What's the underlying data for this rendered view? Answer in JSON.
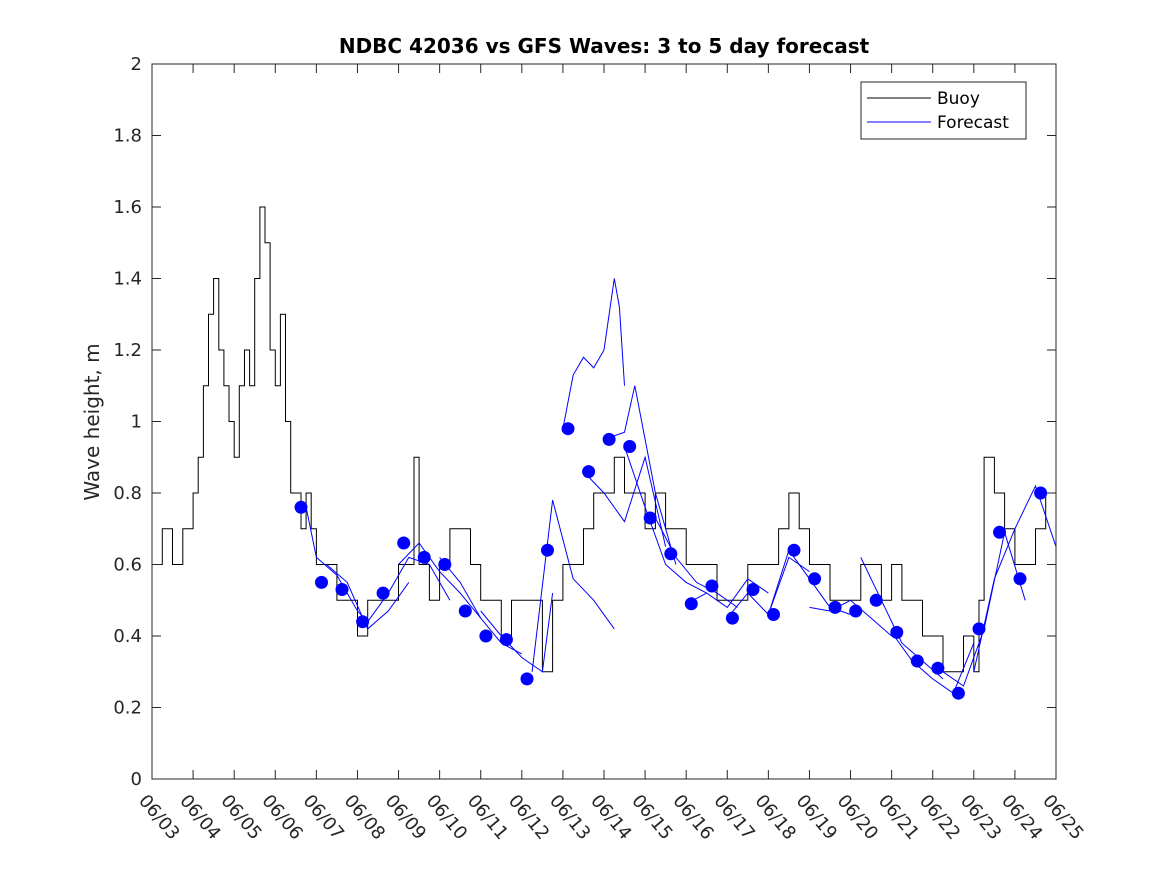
{
  "chart_data": {
    "type": "line",
    "title": "NDBC 42036 vs GFS Waves: 3 to 5 day forecast",
    "xlabel": "",
    "ylabel": "Wave height, m",
    "xlim": [
      "06/03",
      "06/25"
    ],
    "ylim": [
      0,
      2
    ],
    "x_tick_labels": [
      "06/03",
      "06/04",
      "06/05",
      "06/06",
      "06/07",
      "06/08",
      "06/09",
      "06/10",
      "06/11",
      "06/12",
      "06/13",
      "06/14",
      "06/15",
      "06/16",
      "06/17",
      "06/18",
      "06/19",
      "06/20",
      "06/21",
      "06/22",
      "06/23",
      "06/24",
      "06/25"
    ],
    "y_tick_labels": [
      "0",
      "0.2",
      "0.4",
      "0.6",
      "0.8",
      "1",
      "1.2",
      "1.4",
      "1.6",
      "1.8",
      "2"
    ],
    "grid": false,
    "legend": {
      "position": "top-right",
      "entries": [
        "Buoy",
        "Forecast"
      ]
    },
    "colors": {
      "buoy": "#000000",
      "forecast": "#0000ff"
    },
    "series": [
      {
        "name": "Buoy",
        "x": [
          "06/03 00:00",
          "06/03 06:00",
          "06/03 12:00",
          "06/03 18:00",
          "06/04 00:00",
          "06/04 03:00",
          "06/04 06:00",
          "06/04 09:00",
          "06/04 12:00",
          "06/04 15:00",
          "06/04 18:00",
          "06/04 21:00",
          "06/05 00:00",
          "06/05 03:00",
          "06/05 06:00",
          "06/05 09:00",
          "06/05 12:00",
          "06/05 15:00",
          "06/05 18:00",
          "06/05 21:00",
          "06/06 00:00",
          "06/06 03:00",
          "06/06 06:00",
          "06/06 09:00",
          "06/06 12:00",
          "06/06 15:00",
          "06/06 18:00",
          "06/06 21:00",
          "06/07 00:00",
          "06/07 06:00",
          "06/07 12:00",
          "06/07 18:00",
          "06/08 00:00",
          "06/08 06:00",
          "06/08 12:00",
          "06/08 18:00",
          "06/09 00:00",
          "06/09 06:00",
          "06/09 09:00",
          "06/09 12:00",
          "06/09 18:00",
          "06/10 00:00",
          "06/10 06:00",
          "06/10 12:00",
          "06/10 18:00",
          "06/11 00:00",
          "06/11 06:00",
          "06/11 12:00",
          "06/11 18:00",
          "06/12 00:00",
          "06/12 06:00",
          "06/12 12:00",
          "06/12 18:00",
          "06/13 00:00",
          "06/13 06:00",
          "06/13 12:00",
          "06/13 18:00",
          "06/14 00:00",
          "06/14 06:00",
          "06/14 12:00",
          "06/14 18:00",
          "06/15 00:00",
          "06/15 06:00",
          "06/15 12:00",
          "06/15 18:00",
          "06/16 00:00",
          "06/16 06:00",
          "06/16 12:00",
          "06/16 18:00",
          "06/17 00:00",
          "06/17 06:00",
          "06/17 12:00",
          "06/17 18:00",
          "06/18 00:00",
          "06/18 06:00",
          "06/18 12:00",
          "06/18 18:00",
          "06/19 00:00",
          "06/19 06:00",
          "06/19 12:00",
          "06/19 18:00",
          "06/20 00:00",
          "06/20 06:00",
          "06/20 12:00",
          "06/20 18:00",
          "06/21 00:00",
          "06/21 06:00",
          "06/21 12:00",
          "06/21 18:00",
          "06/22 00:00",
          "06/22 06:00",
          "06/22 12:00",
          "06/22 18:00",
          "06/23 00:00",
          "06/23 03:00",
          "06/23 06:00",
          "06/23 12:00",
          "06/23 18:00",
          "06/24 00:00",
          "06/24 06:00",
          "06/24 12:00",
          "06/24 18:00",
          "06/25 00:00"
        ],
        "y": [
          0.6,
          0.7,
          0.6,
          0.7,
          0.8,
          0.9,
          1.1,
          1.3,
          1.4,
          1.2,
          1.1,
          1.0,
          0.9,
          1.1,
          1.2,
          1.1,
          1.4,
          1.6,
          1.5,
          1.2,
          1.1,
          1.3,
          1.0,
          0.8,
          0.8,
          0.7,
          0.8,
          0.7,
          0.6,
          0.6,
          0.5,
          0.5,
          0.4,
          0.5,
          0.5,
          0.5,
          0.6,
          0.6,
          0.9,
          0.6,
          0.5,
          0.6,
          0.7,
          0.7,
          0.6,
          0.5,
          0.5,
          0.4,
          0.5,
          0.5,
          0.5,
          0.3,
          0.5,
          0.6,
          0.6,
          0.7,
          0.8,
          0.8,
          0.9,
          0.8,
          0.8,
          0.7,
          0.8,
          0.7,
          0.7,
          0.6,
          0.6,
          0.6,
          0.5,
          0.5,
          0.5,
          0.6,
          0.6,
          0.6,
          0.7,
          0.8,
          0.7,
          0.6,
          0.6,
          0.5,
          0.5,
          0.5,
          0.6,
          0.6,
          0.5,
          0.6,
          0.5,
          0.5,
          0.4,
          0.4,
          0.3,
          0.3,
          0.4,
          0.3,
          0.5,
          0.9,
          0.8,
          0.7,
          0.6,
          0.6,
          0.7,
          0.8,
          0.6
        ]
      },
      {
        "name": "Forecast",
        "runs": [
          {
            "x": [
              "06/06 18:00",
              "06/07 00:00",
              "06/07 12:00",
              "06/08 00:00",
              "06/08 06:00"
            ],
            "y": [
              0.76,
              0.62,
              0.57,
              0.47,
              0.44
            ]
          },
          {
            "x": [
              "06/07 06:00",
              "06/07 18:00",
              "06/08 06:00",
              "06/08 18:00",
              "06/09 06:00"
            ],
            "y": [
              0.6,
              0.55,
              0.42,
              0.47,
              0.55
            ]
          },
          {
            "x": [
              "06/08 06:00",
              "06/08 18:00",
              "06/09 06:00",
              "06/09 18:00",
              "06/10 06:00"
            ],
            "y": [
              0.44,
              0.52,
              0.62,
              0.6,
              0.5
            ]
          },
          {
            "x": [
              "06/09 00:00",
              "06/09 12:00",
              "06/10 00:00",
              "06/10 12:00",
              "06/11 00:00"
            ],
            "y": [
              0.6,
              0.66,
              0.58,
              0.52,
              0.45
            ]
          },
          {
            "x": [
              "06/10 00:00",
              "06/10 12:00",
              "06/11 00:00",
              "06/11 12:00",
              "06/12 00:00"
            ],
            "y": [
              0.62,
              0.55,
              0.45,
              0.38,
              0.35
            ]
          },
          {
            "x": [
              "06/11 00:00",
              "06/11 12:00",
              "06/12 00:00",
              "06/12 12:00",
              "06/12 18:00"
            ],
            "y": [
              0.47,
              0.4,
              0.34,
              0.3,
              0.52
            ]
          },
          {
            "x": [
              "06/12 06:00",
              "06/12 18:00",
              "06/13 06:00",
              "06/13 18:00",
              "06/14 06:00"
            ],
            "y": [
              0.3,
              0.78,
              0.56,
              0.5,
              0.42
            ]
          },
          {
            "x": [
              "06/13 00:00",
              "06/13 06:00",
              "06/13 12:00",
              "06/13 18:00",
              "06/14 00:00",
              "06/14 06:00",
              "06/14 09:00",
              "06/14 12:00"
            ],
            "y": [
              0.98,
              1.13,
              1.18,
              1.15,
              1.2,
              1.4,
              1.32,
              1.1
            ]
          },
          {
            "x": [
              "06/13 12:00",
              "06/14 00:00",
              "06/14 12:00",
              "06/15 00:00",
              "06/15 12:00"
            ],
            "y": [
              0.86,
              0.8,
              0.72,
              0.9,
              0.65
            ]
          },
          {
            "x": [
              "06/14 00:00",
              "06/14 12:00",
              "06/14 18:00",
              "06/15 06:00",
              "06/15 18:00"
            ],
            "y": [
              0.95,
              0.97,
              1.1,
              0.8,
              0.6
            ]
          },
          {
            "x": [
              "06/14 12:00",
              "06/15 00:00",
              "06/15 12:00",
              "06/16 00:00",
              "06/16 12:00"
            ],
            "y": [
              0.93,
              0.76,
              0.6,
              0.55,
              0.52
            ]
          },
          {
            "x": [
              "06/15 06:00",
              "06/15 18:00",
              "06/16 06:00",
              "06/16 18:00",
              "06/17 06:00"
            ],
            "y": [
              0.73,
              0.62,
              0.55,
              0.52,
              0.48
            ]
          },
          {
            "x": [
              "06/16 00:00",
              "06/16 12:00",
              "06/17 00:00",
              "06/17 12:00",
              "06/18 00:00"
            ],
            "y": [
              0.49,
              0.52,
              0.48,
              0.56,
              0.52
            ]
          },
          {
            "x": [
              "06/17 00:00",
              "06/17 12:00",
              "06/18 00:00",
              "06/18 12:00",
              "06/19 00:00"
            ],
            "y": [
              0.45,
              0.52,
              0.46,
              0.62,
              0.58
            ]
          },
          {
            "x": [
              "06/18 00:00",
              "06/18 12:00",
              "06/19 00:00",
              "06/19 12:00",
              "06/20 00:00"
            ],
            "y": [
              0.46,
              0.64,
              0.56,
              0.48,
              0.46
            ]
          },
          {
            "x": [
              "06/19 00:00",
              "06/19 12:00",
              "06/20 00:00",
              "06/20 12:00",
              "06/21 00:00"
            ],
            "y": [
              0.48,
              0.47,
              0.5,
              0.45,
              0.4
            ]
          },
          {
            "x": [
              "06/20 06:00",
              "06/20 18:00",
              "06/21 06:00",
              "06/21 18:00",
              "06/22 06:00"
            ],
            "y": [
              0.62,
              0.5,
              0.38,
              0.33,
              0.28
            ]
          },
          {
            "x": [
              "06/21 00:00",
              "06/21 12:00",
              "06/22 00:00",
              "06/22 12:00",
              "06/23 00:00"
            ],
            "y": [
              0.41,
              0.33,
              0.28,
              0.24,
              0.38
            ]
          },
          {
            "x": [
              "06/22 06:00",
              "06/22 18:00",
              "06/23 06:00",
              "06/23 18:00",
              "06/24 06:00"
            ],
            "y": [
              0.3,
              0.26,
              0.42,
              0.69,
              0.5
            ]
          },
          {
            "x": [
              "06/23 00:00",
              "06/23 12:00",
              "06/24 00:00",
              "06/24 12:00",
              "06/25 00:00"
            ],
            "y": [
              0.3,
              0.56,
              0.7,
              0.82,
              0.65
            ]
          }
        ],
        "markers": {
          "x": [
            "06/06 15:00",
            "06/07 03:00",
            "06/07 15:00",
            "06/08 03:00",
            "06/08 15:00",
            "06/09 03:00",
            "06/09 15:00",
            "06/10 03:00",
            "06/10 15:00",
            "06/11 03:00",
            "06/11 15:00",
            "06/12 03:00",
            "06/12 15:00",
            "06/13 03:00",
            "06/13 15:00",
            "06/14 03:00",
            "06/14 15:00",
            "06/15 03:00",
            "06/15 15:00",
            "06/16 03:00",
            "06/16 15:00",
            "06/17 03:00",
            "06/17 15:00",
            "06/18 03:00",
            "06/18 15:00",
            "06/19 03:00",
            "06/19 15:00",
            "06/20 03:00",
            "06/20 15:00",
            "06/21 03:00",
            "06/21 15:00",
            "06/22 03:00",
            "06/22 15:00",
            "06/23 03:00",
            "06/23 15:00",
            "06/24 03:00",
            "06/24 15:00"
          ],
          "y": [
            0.76,
            0.55,
            0.53,
            0.44,
            0.52,
            0.66,
            0.62,
            0.6,
            0.47,
            0.4,
            0.39,
            0.28,
            0.64,
            0.98,
            0.86,
            0.95,
            0.93,
            0.73,
            0.63,
            0.49,
            0.54,
            0.45,
            0.53,
            0.46,
            0.64,
            0.56,
            0.48,
            0.47,
            0.5,
            0.41,
            0.33,
            0.31,
            0.24,
            0.42,
            0.69,
            0.56,
            0.8
          ]
        }
      }
    ]
  }
}
